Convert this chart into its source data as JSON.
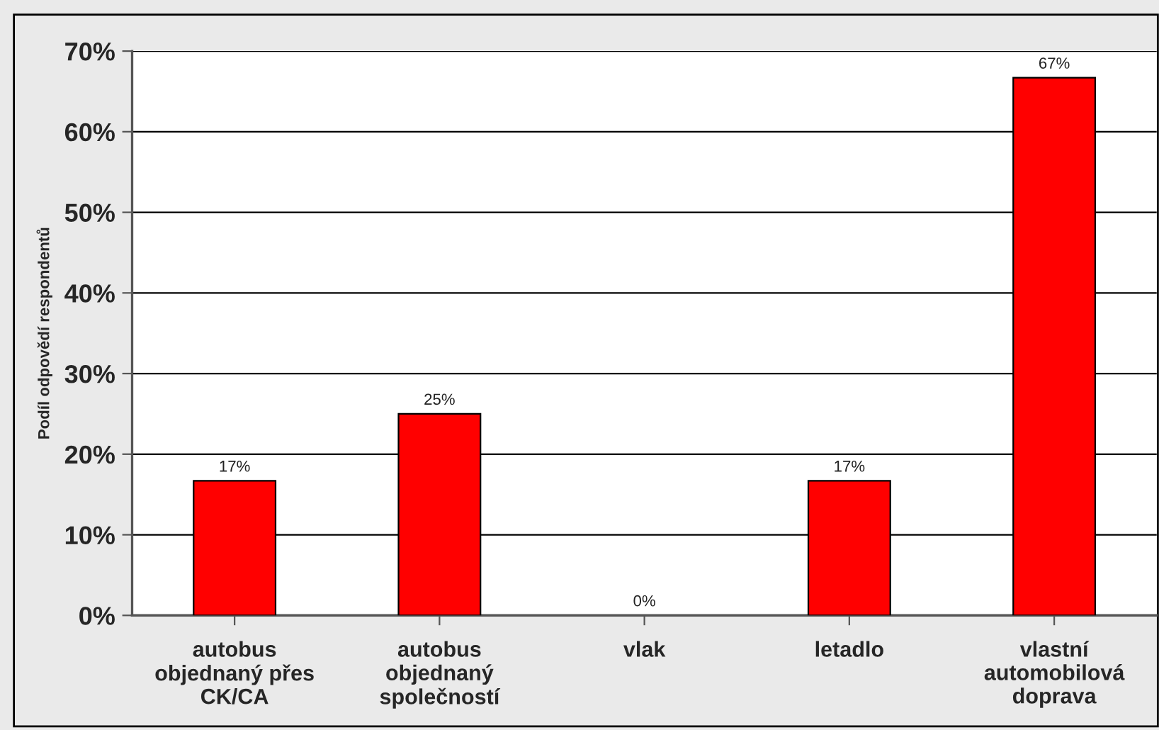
{
  "chart_data": {
    "type": "bar",
    "ylabel": "Podíl odpovědí respondentů",
    "categories": [
      "autobus\nobjednaný přes\nCK/CA",
      "autobus\nobjednaný\nspolečností",
      "vlak",
      "letadlo",
      "vlastní\nautomobilová\ndoprava"
    ],
    "values": [
      16.7,
      25,
      0,
      16.7,
      66.7
    ],
    "value_labels": [
      "17%",
      "25%",
      "0%",
      "17%",
      "67%"
    ],
    "color": "#ff0000",
    "ylim": [
      0,
      70
    ],
    "yticks": [
      {
        "value": 0,
        "label": "0%"
      },
      {
        "value": 10,
        "label": "10%"
      },
      {
        "value": 20,
        "label": "20%"
      },
      {
        "value": 30,
        "label": "30%"
      },
      {
        "value": 40,
        "label": "40%"
      },
      {
        "value": 50,
        "label": "50%"
      },
      {
        "value": 60,
        "label": "60%"
      },
      {
        "value": 70,
        "label": "70%"
      }
    ],
    "grid": "y",
    "legend": false
  }
}
